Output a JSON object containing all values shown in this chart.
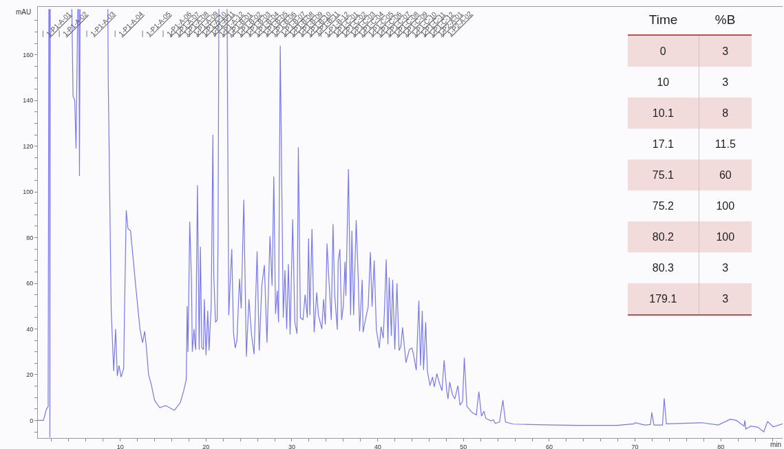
{
  "chart_data": [
    {
      "type": "line",
      "xlabel": "min",
      "ylabel": "mAU",
      "color": "#7878ee",
      "grid": false,
      "legend": false,
      "marker": "none",
      "line_style": "solid",
      "xlim": [
        0.4,
        87.2
      ],
      "ylim": [
        -7.7,
        181
      ],
      "xticks": [
        {
          "value": 2,
          "label": null
        },
        {
          "value": 4,
          "label": null
        },
        {
          "value": 6,
          "label": null
        },
        {
          "value": 8,
          "label": null
        },
        10,
        {
          "value": 12,
          "label": null
        },
        {
          "value": 14,
          "label": null
        },
        {
          "value": 16,
          "label": null
        },
        {
          "value": 18,
          "label": null
        },
        20,
        {
          "value": 22,
          "label": null
        },
        {
          "value": 24,
          "label": null
        },
        {
          "value": 26,
          "label": null
        },
        {
          "value": 28,
          "label": null
        },
        30,
        {
          "value": 32,
          "label": null
        },
        {
          "value": 34,
          "label": null
        },
        {
          "value": 36,
          "label": null
        },
        {
          "value": 38,
          "label": null
        },
        40,
        {
          "value": 42,
          "label": null
        },
        {
          "value": 44,
          "label": null
        },
        {
          "value": 46,
          "label": null
        },
        {
          "value": 48,
          "label": null
        },
        50,
        {
          "value": 52,
          "label": null
        },
        {
          "value": 54,
          "label": null
        },
        {
          "value": 56,
          "label": null
        },
        {
          "value": 58,
          "label": null
        },
        60,
        {
          "value": 62,
          "label": null
        },
        {
          "value": 64,
          "label": null
        },
        {
          "value": 66,
          "label": null
        },
        {
          "value": 68,
          "label": null
        },
        70,
        {
          "value": 72,
          "label": null
        },
        {
          "value": 74,
          "label": null
        },
        {
          "value": 76,
          "label": null
        },
        {
          "value": 78,
          "label": null
        },
        80,
        {
          "value": 82,
          "label": null
        },
        {
          "value": 84,
          "label": null
        },
        {
          "value": 86,
          "label": null
        }
      ],
      "yticks": [
        {
          "value": -5,
          "label": null
        },
        0,
        {
          "value": 5,
          "label": null
        },
        {
          "value": 10,
          "label": null
        },
        {
          "value": 15,
          "label": null
        },
        20,
        {
          "value": 25,
          "label": null
        },
        {
          "value": 30,
          "label": null
        },
        {
          "value": 35,
          "label": null
        },
        40,
        {
          "value": 45,
          "label": null
        },
        {
          "value": 50,
          "label": null
        },
        {
          "value": 55,
          "label": null
        },
        60,
        {
          "value": 65,
          "label": null
        },
        {
          "value": 70,
          "label": null
        },
        {
          "value": 75,
          "label": null
        },
        80,
        {
          "value": 85,
          "label": null
        },
        {
          "value": 90,
          "label": null
        },
        {
          "value": 95,
          "label": null
        },
        100,
        {
          "value": 105,
          "label": null
        },
        {
          "value": 110,
          "label": null
        },
        {
          "value": 115,
          "label": null
        },
        120,
        {
          "value": 125,
          "label": null
        },
        {
          "value": 130,
          "label": null
        },
        {
          "value": 135,
          "label": null
        },
        140,
        {
          "value": 145,
          "label": null
        },
        {
          "value": 150,
          "label": null
        },
        {
          "value": 155,
          "label": null
        },
        160,
        {
          "value": 165,
          "label": null
        },
        {
          "value": 170,
          "label": null
        },
        {
          "value": 175,
          "label": null
        }
      ],
      "x": [
        0.4,
        1.05,
        1.4,
        1.6,
        1.68,
        1.7,
        1.76,
        1.8,
        1.84,
        3,
        4.36,
        4.5,
        4.7,
        4.85,
        5.0,
        5.05,
        5.1,
        5.18,
        5.25,
        5.32,
        7,
        8.56,
        8.6,
        8.95,
        9.24,
        9.46,
        9.66,
        9.86,
        10.1,
        10.4,
        10.5,
        10.7,
        10.9,
        11.2,
        11.8,
        12.3,
        12.6,
        12.85,
        13.05,
        13.3,
        13.6,
        14.0,
        14.6,
        15.3,
        16.3,
        17.0,
        17.4,
        17.7,
        17.8,
        17.9,
        18.1,
        18.3,
        18.4,
        18.6,
        18.7,
        18.8,
        19.0,
        19.2,
        19.35,
        19.5,
        19.7,
        19.8,
        20.0,
        20.2,
        20.35,
        20.6,
        20.8,
        20.9,
        21.1,
        21.3,
        21.4,
        21.5,
        22,
        22.45,
        22.65,
        22.8,
        23.0,
        23.2,
        23.4,
        23.6,
        23.9,
        24.1,
        24.4,
        24.7,
        25.0,
        25.3,
        25.6,
        25.95,
        26.2,
        26.5,
        26.8,
        27.1,
        27.45,
        27.7,
        27.9,
        28.1,
        28.3,
        28.45,
        28.65,
        29.0,
        29.2,
        29.4,
        29.6,
        29.8,
        30.1,
        30.35,
        30.6,
        30.76,
        31.0,
        31.3,
        31.55,
        31.8,
        31.95,
        32.1,
        32.35,
        32.6,
        32.9,
        33.1,
        33.5,
        33.7,
        33.9,
        34.1,
        34.3,
        34.6,
        34.8,
        35.0,
        35.3,
        35.4,
        35.6,
        35.8,
        36.0,
        36.2,
        36.3,
        36.6,
        36.85,
        37.0,
        37.2,
        37.5,
        37.75,
        37.9,
        38.2,
        38.3,
        38.6,
        38.9,
        39.15,
        39.35,
        39.6,
        39.85,
        40.2,
        40.4,
        40.65,
        40.8,
        41.0,
        41.2,
        41.35,
        41.6,
        41.75,
        42.0,
        42.25,
        42.5,
        42.7,
        42.9,
        43.3,
        43.7,
        44.0,
        44.2,
        44.5,
        44.8,
        45.0,
        45.2,
        45.35,
        45.5,
        45.6,
        45.8,
        46.1,
        46.4,
        46.6,
        46.9,
        47.2,
        47.5,
        47.75,
        48.05,
        48.2,
        48.4,
        48.7,
        49.0,
        49.35,
        49.6,
        49.9,
        50.1,
        50.4,
        51.0,
        51.5,
        51.8,
        52.1,
        52.4,
        52.6,
        53.2,
        53.5,
        53.7,
        54.2,
        54.6,
        54.9,
        55.8,
        57.75,
        60.6,
        63.4,
        67.9,
        69.9,
        70.0,
        71.1,
        71.8,
        71.95,
        72.2,
        73.2,
        73.4,
        73.65,
        77.8,
        79.7,
        81.1,
        81.8,
        82.7,
        82.8,
        82.9,
        83.5,
        84.3,
        85.0,
        85.45,
        86.1,
        87.2
      ],
      "values": [
        0,
        0,
        5,
        6,
        180,
        null,
        180,
        -7.5,
        180,
        null,
        180,
        142,
        140,
        119,
        165,
        180,
        null,
        180,
        107,
        180,
        null,
        180,
        150,
        48,
        21.6,
        40,
        19.5,
        24,
        19,
        22.7,
        48,
        92,
        84,
        83,
        59,
        40,
        34,
        39,
        32,
        20,
        16,
        8.8,
        5.6,
        6.5,
        4.4,
        7.8,
        13,
        18,
        50,
        30,
        87,
        62,
        30,
        40,
        34,
        31,
        103,
        31,
        76,
        32,
        31,
        53,
        28.5,
        48,
        30.6,
        50,
        125,
        64,
        43,
        44,
        79,
        180,
        null,
        180,
        46,
        59,
        75,
        38.6,
        31.7,
        35,
        62,
        49,
        96.6,
        28,
        53,
        37.5,
        29,
        74,
        30.6,
        59,
        68,
        34,
        80.6,
        59,
        106.7,
        46.6,
        56.7,
        43,
        164,
        45,
        65.7,
        40,
        68.4,
        37.6,
        88,
        43,
        38,
        119.5,
        45,
        44,
        55,
        45,
        79.6,
        46,
        83.8,
        38.6,
        56,
        46,
        40,
        53,
        42,
        77.4,
        63,
        44,
        86,
        54.6,
        39.7,
        69.5,
        75,
        44,
        50,
        69.5,
        54.6,
        110,
        46,
        83,
        46,
        87.6,
        61,
        39,
        61.5,
        38.6,
        44.5,
        49.8,
        73.7,
        49.8,
        70,
        39.7,
        31.7,
        41,
        36,
        48.7,
        70.5,
        33.3,
        62.6,
        37,
        61.5,
        31,
        60,
        30.6,
        32.2,
        40.7,
        25.3,
        31,
        31.7,
        28.5,
        22,
        52.4,
        24,
        48,
        22,
        34,
        43,
        21.6,
        15.2,
        19,
        14.7,
        20.5,
        16.3,
        13,
        26.4,
        13,
        9.4,
        16.8,
        11.5,
        9.4,
        15.2,
        6.7,
        8.3,
        27.4,
        6.2,
        3.5,
        2.4,
        12.6,
        1.9,
        4,
        0.9,
        -0.2,
        0.3,
        -1.3,
        -0.7,
        8.8,
        -0.7,
        -1.6,
        -1.8,
        -2,
        -2.2,
        -2.2,
        -1.5,
        -1,
        -2,
        -1.8,
        3.5,
        -2,
        -2,
        9.7,
        -1.5,
        -1,
        -2,
        0.5,
        0,
        -2.5,
        0,
        -3.8,
        -2.5,
        -3,
        -5,
        -0.5,
        -2.8,
        -1.5
      ],
      "ref_lines": [
        {
          "axis": "x",
          "label": "1-P1-A-01",
          "value": 1.0
        },
        {
          "axis": "x",
          "label": "1-P1-A-02",
          "value": 2.9
        },
        {
          "axis": "x",
          "label": "1-P1-A-03",
          "value": 6.1
        },
        {
          "axis": "x",
          "label": "1-P1-A-04",
          "value": 9.4
        },
        {
          "axis": "x",
          "label": "1-P1-A-05",
          "value": 12.6
        },
        {
          "axis": "x",
          "label": "1-P1-A-06",
          "value": 15.0
        },
        {
          "axis": "x",
          "label": "1-P1-A-07",
          "value": 16.0
        },
        {
          "axis": "x",
          "label": "1-P1-A-08",
          "value": 17.0
        },
        {
          "axis": "x",
          "label": "1-P1-A-09",
          "value": 18.1
        },
        {
          "axis": "x",
          "label": "1-P1-A-10",
          "value": 19.1
        },
        {
          "axis": "x",
          "label": "1-P1-A-11",
          "value": 20.1
        },
        {
          "axis": "x",
          "label": "1-P1-A-12",
          "value": 21.1
        },
        {
          "axis": "x",
          "label": "1-P1-B-01",
          "value": 22.1
        },
        {
          "axis": "x",
          "label": "1-P1-B-02",
          "value": 23.2
        },
        {
          "axis": "x",
          "label": "1-P1-B-03",
          "value": 24.2
        },
        {
          "axis": "x",
          "label": "1-P1-B-04",
          "value": 25.2
        },
        {
          "axis": "x",
          "label": "1-P1-B-05",
          "value": 26.2
        },
        {
          "axis": "x",
          "label": "1-P1-B-06",
          "value": 27.2
        },
        {
          "axis": "x",
          "label": "1-P1-B-07",
          "value": 28.3
        },
        {
          "axis": "x",
          "label": "1-P1-B-08",
          "value": 29.3
        },
        {
          "axis": "x",
          "label": "1-P1-B-09",
          "value": 30.3
        },
        {
          "axis": "x",
          "label": "1-P1-B-10",
          "value": 31.3
        },
        {
          "axis": "x",
          "label": "1-P1-B-11",
          "value": 32.3
        },
        {
          "axis": "x",
          "label": "1-P1-B-12",
          "value": 33.4
        },
        {
          "axis": "x",
          "label": "1-P1-C-01",
          "value": 34.4
        },
        {
          "axis": "x",
          "label": "1-P1-C-02",
          "value": 35.4
        },
        {
          "axis": "x",
          "label": "1-P1-C-03",
          "value": 36.4
        },
        {
          "axis": "x",
          "label": "1-P1-C-04",
          "value": 37.4
        },
        {
          "axis": "x",
          "label": "1-P1-C-05",
          "value": 38.5
        },
        {
          "axis": "x",
          "label": "1-P1-C-06",
          "value": 39.5
        },
        {
          "axis": "x",
          "label": "1-P1-C-07",
          "value": 40.5
        },
        {
          "axis": "x",
          "label": "1-P1-C-08",
          "value": 41.5
        },
        {
          "axis": "x",
          "label": "1-P1-C-09",
          "value": 42.5
        },
        {
          "axis": "x",
          "label": "1-P1-C-10",
          "value": 43.6
        },
        {
          "axis": "x",
          "label": "1-P1-C-11",
          "value": 44.6
        },
        {
          "axis": "x",
          "label": "1-P1-C-12",
          "value": 45.6
        },
        {
          "axis": "x",
          "label": "1-P2-A-01",
          "value": 46.6
        },
        {
          "axis": "x",
          "label": "1-P2-A-02",
          "value": 47.7
        }
      ]
    },
    {
      "type": "other",
      "categories": [
        "Time",
        "%B"
      ],
      "cell_labels": [
        [
          "0",
          "3"
        ],
        [
          "10",
          "3"
        ],
        [
          "10.1",
          "8"
        ],
        [
          "17.1",
          "11.5"
        ],
        [
          "75.1",
          "60"
        ],
        [
          "75.2",
          "100"
        ],
        [
          "80.2",
          "100"
        ],
        [
          "80.3",
          "3"
        ],
        [
          "179.1",
          "3"
        ]
      ]
    }
  ]
}
